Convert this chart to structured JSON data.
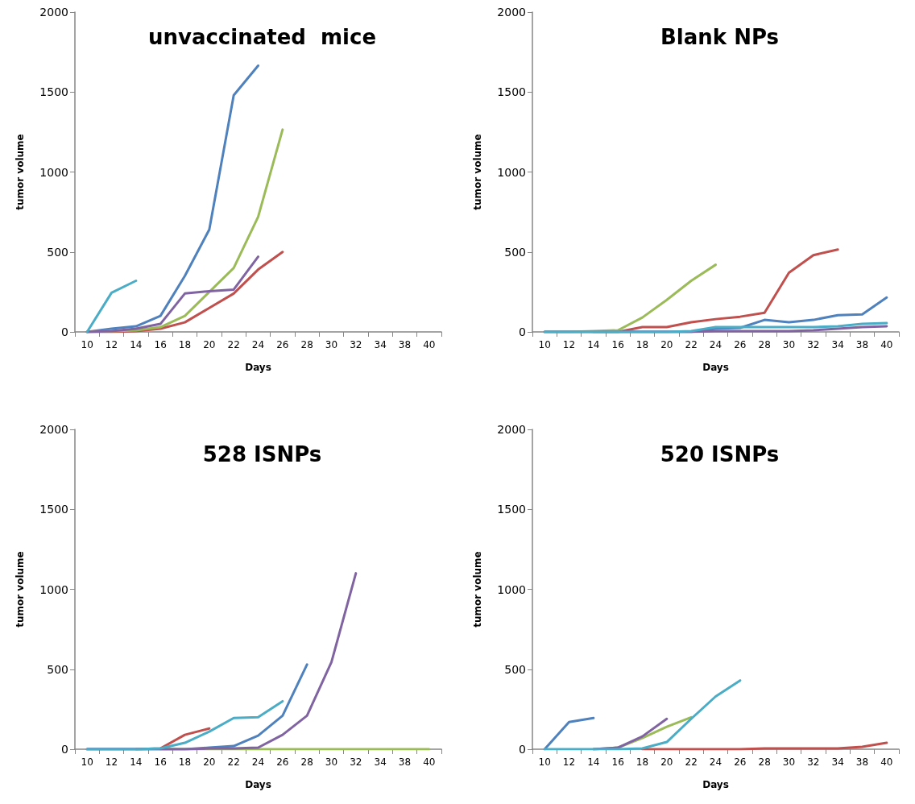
{
  "chart_data": [
    {
      "type": "line",
      "title": "unvaccinated  mice",
      "xlabel": "Days",
      "ylabel": "tumor volume",
      "marker": "none",
      "categories": [
        "10",
        "12",
        "14",
        "16",
        "18",
        "20",
        "22",
        "24",
        "26",
        "28",
        "30",
        "32",
        "34",
        "38",
        "40"
      ],
      "ylim": [
        0,
        2000
      ],
      "yticks": [
        0,
        500,
        1000,
        1500,
        2000
      ],
      "series": [
        {
          "color": "#4f81bd",
          "values": [
            0,
            20,
            35,
            100,
            350,
            640,
            1480,
            1665,
            null,
            null,
            null,
            null,
            null,
            null,
            null
          ]
        },
        {
          "color": "#c0504d",
          "values": [
            0,
            0,
            5,
            20,
            60,
            150,
            240,
            390,
            500,
            null,
            null,
            null,
            null,
            null,
            null
          ]
        },
        {
          "color": "#9bbb59",
          "values": [
            0,
            5,
            10,
            30,
            100,
            250,
            400,
            720,
            1265,
            null,
            null,
            null,
            null,
            null,
            null
          ]
        },
        {
          "color": "#8064a2",
          "values": [
            0,
            5,
            20,
            50,
            240,
            255,
            265,
            470,
            null,
            null,
            null,
            null,
            null,
            null,
            null
          ]
        },
        {
          "color": "#4bacc6",
          "values": [
            0,
            245,
            320,
            null,
            null,
            null,
            null,
            null,
            null,
            null,
            null,
            null,
            null,
            null,
            null
          ]
        }
      ]
    },
    {
      "type": "line",
      "title": "Blank NPs",
      "xlabel": "Days",
      "ylabel": "tumor volume",
      "marker": "none",
      "categories": [
        "10",
        "12",
        "14",
        "16",
        "18",
        "20",
        "22",
        "24",
        "26",
        "28",
        "30",
        "32",
        "34",
        "38",
        "40"
      ],
      "ylim": [
        0,
        2000
      ],
      "yticks": [
        0,
        500,
        1000,
        1500,
        2000
      ],
      "series": [
        {
          "color": "#4f81bd",
          "values": [
            0,
            0,
            0,
            0,
            0,
            0,
            0,
            20,
            25,
            75,
            60,
            75,
            105,
            110,
            215
          ]
        },
        {
          "color": "#c0504d",
          "values": [
            null,
            null,
            0,
            0,
            30,
            30,
            60,
            80,
            95,
            120,
            370,
            480,
            515,
            null,
            null
          ]
        },
        {
          "color": "#9bbb59",
          "values": [
            0,
            0,
            5,
            10,
            90,
            200,
            320,
            420,
            null,
            null,
            null,
            null,
            null,
            null,
            null
          ]
        },
        {
          "color": "#8064a2",
          "values": [
            0,
            0,
            0,
            0,
            0,
            0,
            0,
            5,
            5,
            5,
            5,
            10,
            20,
            30,
            35
          ]
        },
        {
          "color": "#4bacc6",
          "values": [
            0,
            0,
            0,
            0,
            0,
            0,
            5,
            30,
            30,
            30,
            30,
            30,
            35,
            50,
            55
          ]
        }
      ]
    },
    {
      "type": "line",
      "title": "528 ISNPs",
      "xlabel": "Days",
      "ylabel": "tumor volume",
      "marker": "none",
      "categories": [
        "10",
        "12",
        "14",
        "16",
        "18",
        "20",
        "22",
        "24",
        "26",
        "28",
        "30",
        "32",
        "34",
        "38",
        "40"
      ],
      "ylim": [
        0,
        2000
      ],
      "yticks": [
        0,
        500,
        1000,
        1500,
        2000
      ],
      "series": [
        {
          "color": "#4f81bd",
          "values": [
            0,
            0,
            0,
            0,
            0,
            10,
            20,
            85,
            210,
            530,
            null,
            null,
            null,
            null,
            null
          ]
        },
        {
          "color": "#c0504d",
          "values": [
            null,
            null,
            0,
            5,
            90,
            130,
            null,
            null,
            null,
            null,
            null,
            null,
            null,
            null,
            null
          ]
        },
        {
          "color": "#9bbb59",
          "values": [
            null,
            null,
            null,
            0,
            0,
            0,
            0,
            0,
            0,
            0,
            0,
            0,
            0,
            0,
            0
          ]
        },
        {
          "color": "#8064a2",
          "values": [
            0,
            0,
            0,
            0,
            0,
            5,
            5,
            10,
            90,
            210,
            545,
            1100,
            null,
            null,
            null
          ]
        },
        {
          "color": "#4bacc6",
          "values": [
            0,
            0,
            0,
            5,
            40,
            110,
            195,
            200,
            300,
            null,
            null,
            null,
            null,
            null,
            null
          ]
        }
      ]
    },
    {
      "type": "line",
      "title": "520 ISNPs",
      "xlabel": "Days",
      "ylabel": "tumor volume",
      "marker": "none",
      "categories": [
        "10",
        "12",
        "14",
        "16",
        "18",
        "20",
        "22",
        "24",
        "26",
        "28",
        "30",
        "32",
        "34",
        "38",
        "40"
      ],
      "ylim": [
        0,
        2000
      ],
      "yticks": [
        0,
        500,
        1000,
        1500,
        2000
      ],
      "series": [
        {
          "color": "#4f81bd",
          "values": [
            0,
            170,
            195,
            null,
            null,
            null,
            null,
            null,
            null,
            null,
            null,
            null,
            null,
            null,
            null
          ]
        },
        {
          "color": "#c0504d",
          "values": [
            null,
            null,
            null,
            null,
            0,
            0,
            0,
            0,
            0,
            5,
            5,
            5,
            5,
            15,
            40
          ]
        },
        {
          "color": "#9bbb59",
          "values": [
            null,
            null,
            0,
            10,
            70,
            140,
            200,
            null,
            null,
            null,
            null,
            null,
            null,
            null,
            null
          ]
        },
        {
          "color": "#8064a2",
          "values": [
            null,
            null,
            0,
            10,
            80,
            190,
            null,
            null,
            null,
            null,
            null,
            null,
            null,
            null,
            null
          ]
        },
        {
          "color": "#4bacc6",
          "values": [
            0,
            0,
            0,
            0,
            5,
            45,
            190,
            330,
            430,
            null,
            null,
            null,
            null,
            null,
            null
          ]
        }
      ]
    }
  ]
}
